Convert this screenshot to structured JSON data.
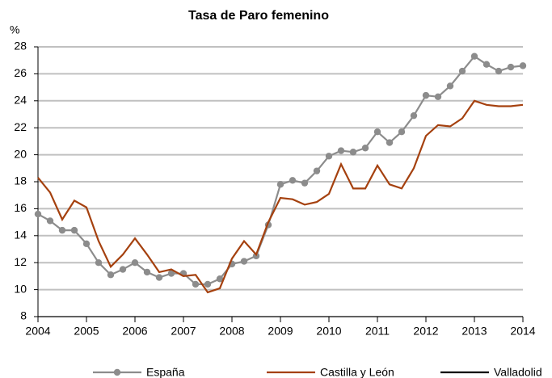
{
  "chart_data": {
    "type": "line",
    "title": "Tasa de Paro femenino",
    "y_label": "%",
    "x": [
      2004,
      2004.25,
      2004.5,
      2004.75,
      2005,
      2005.25,
      2005.5,
      2005.75,
      2006,
      2006.25,
      2006.5,
      2006.75,
      2007,
      2007.25,
      2007.5,
      2007.75,
      2008,
      2008.25,
      2008.5,
      2008.75,
      2009,
      2009.25,
      2009.5,
      2009.75,
      2010,
      2010.25,
      2010.5,
      2010.75,
      2011,
      2011.25,
      2011.5,
      2011.75,
      2012,
      2012.25,
      2012.5,
      2012.75,
      2013,
      2013.25,
      2013.5,
      2013.75,
      2014
    ],
    "series": [
      {
        "name": "España",
        "color": "#8c8c8c",
        "marker": true,
        "values": [
          15.6,
          15.1,
          14.4,
          14.4,
          13.4,
          12.0,
          11.1,
          11.5,
          12.0,
          11.3,
          10.9,
          11.2,
          11.2,
          10.4,
          10.4,
          10.8,
          11.9,
          12.1,
          12.5,
          14.8,
          17.8,
          18.1,
          17.9,
          18.8,
          19.9,
          20.3,
          20.2,
          20.5,
          21.7,
          20.9,
          21.7,
          22.9,
          24.4,
          24.3,
          25.1,
          26.2,
          27.3,
          26.7,
          26.2,
          26.5,
          26.6
        ]
      },
      {
        "name": "Castilla y León",
        "color": "#a5410f",
        "marker": false,
        "values": [
          18.3,
          17.2,
          15.2,
          16.6,
          16.1,
          13.6,
          11.7,
          12.6,
          13.8,
          12.6,
          11.3,
          11.5,
          11.0,
          11.1,
          9.8,
          10.1,
          12.3,
          13.6,
          12.6,
          15.0,
          16.8,
          16.7,
          16.3,
          16.5,
          17.1,
          19.3,
          17.5,
          17.5,
          19.2,
          17.8,
          17.5,
          19.0,
          21.4,
          22.2,
          22.1,
          22.7,
          24.0,
          23.7,
          23.6,
          23.6,
          23.7
        ]
      },
      {
        "name": "Valladolid",
        "color": "#000000",
        "marker": false,
        "values": [
          null,
          null,
          null,
          null,
          null,
          null,
          null,
          null,
          null,
          null,
          null,
          null,
          null,
          null,
          null,
          null,
          null,
          null,
          null,
          null,
          null,
          null,
          null,
          null,
          null,
          null,
          null,
          null,
          null,
          null,
          null,
          null,
          null,
          null,
          null,
          null,
          null,
          null,
          null,
          null,
          null
        ]
      }
    ],
    "xlim": [
      2004,
      2014
    ],
    "xticks": [
      2004,
      2005,
      2006,
      2007,
      2008,
      2009,
      2010,
      2011,
      2012,
      2013,
      2014
    ],
    "ylim": [
      8,
      28
    ],
    "yticks": [
      8,
      10,
      12,
      14,
      16,
      18,
      20,
      22,
      24,
      26,
      28
    ],
    "grid": true
  }
}
